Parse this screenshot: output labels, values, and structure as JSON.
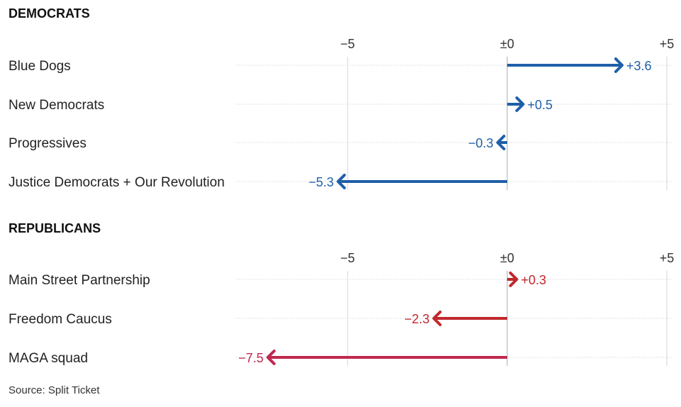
{
  "source": "Source: Split Ticket",
  "colors": {
    "democrats": "#1f5fa8",
    "republicans": "#c0282d",
    "maga": "#c0284f",
    "grid": "#d4d4d4",
    "zero": "#aaaaaa",
    "row_line": "#cfcfcf"
  },
  "chart_data": [
    {
      "type": "bar",
      "title": "DEMOCRATS",
      "xlim": [
        -10,
        5
      ],
      "ticks": [
        {
          "value": -5,
          "label": "−5"
        },
        {
          "value": 0,
          "label": "±0"
        },
        {
          "value": 5,
          "label": "+5"
        }
      ],
      "categories": [
        "Blue Dogs",
        "New Democrats",
        "Progressives",
        "Justice Democrats + Our Revolution"
      ],
      "values": [
        3.6,
        0.5,
        -0.3,
        -5.3
      ],
      "value_labels": [
        "+3.6",
        "+0.5",
        "−0.3",
        "−5.3"
      ],
      "colors": [
        "#1f5fa8",
        "#1f5fa8",
        "#1f5fa8",
        "#1f5fa8"
      ]
    },
    {
      "type": "bar",
      "title": "REPUBLICANS",
      "xlim": [
        -10,
        5
      ],
      "ticks": [
        {
          "value": -5,
          "label": "−5"
        },
        {
          "value": 0,
          "label": "±0"
        },
        {
          "value": 5,
          "label": "+5"
        }
      ],
      "categories": [
        "Main Street Partnership",
        "Freedom Caucus",
        "MAGA squad"
      ],
      "values": [
        0.3,
        -2.3,
        -7.5
      ],
      "value_labels": [
        "+0.3",
        "−2.3",
        "−7.5"
      ],
      "colors": [
        "#c0282d",
        "#c0282d",
        "#c0284f"
      ]
    }
  ]
}
